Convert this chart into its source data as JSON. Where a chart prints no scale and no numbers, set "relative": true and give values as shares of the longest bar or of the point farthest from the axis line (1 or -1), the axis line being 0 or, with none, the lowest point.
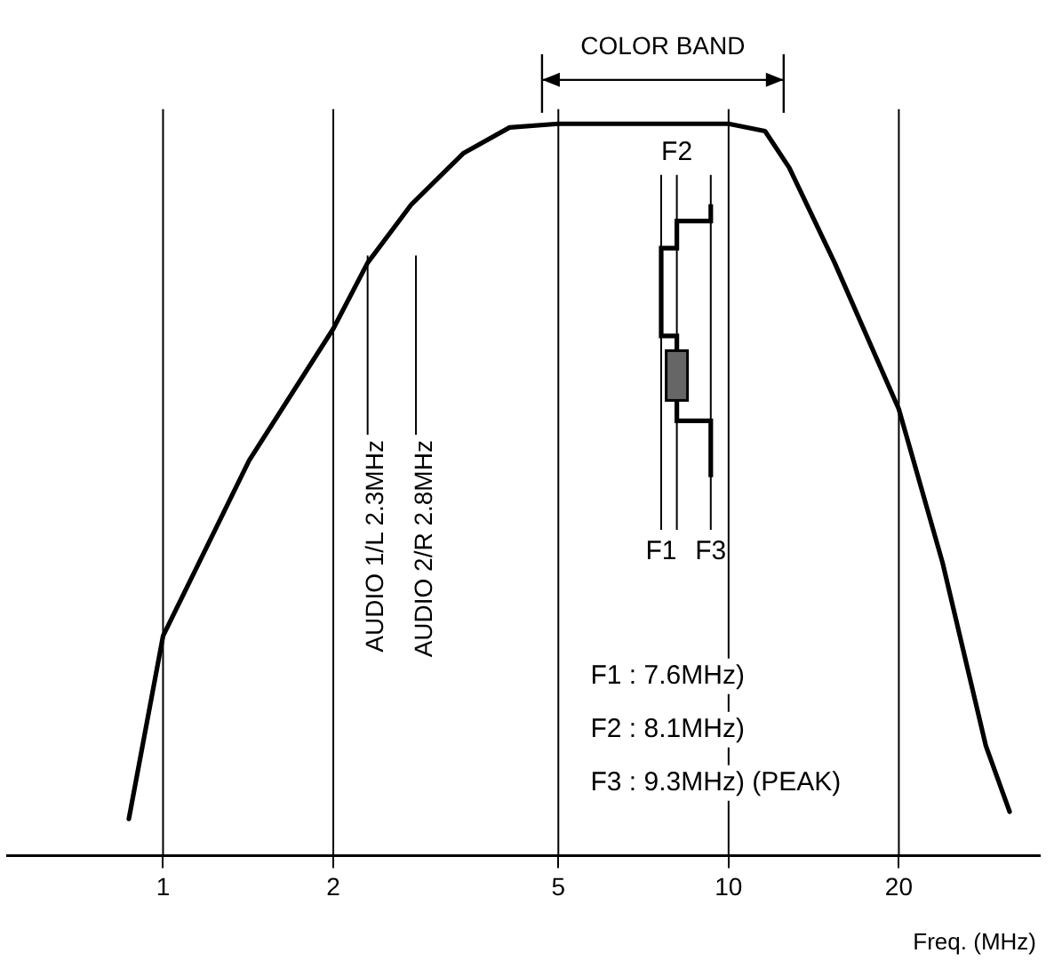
{
  "chart_data": {
    "type": "line",
    "relative": true,
    "xlabel": "Freq. (MHz)",
    "log": "x",
    "xlim": [
      0.53,
      35.5
    ],
    "xticks": [
      1,
      2,
      5,
      10,
      20
    ],
    "grid": "x",
    "tick_labels": "x",
    "legend": false,
    "marker": "none",
    "line_style": "solid",
    "x": [
      0.87,
      1,
      1.42,
      2,
      2.3,
      2.75,
      3.4,
      4.1,
      5,
      10,
      11.6,
      12.8,
      15.4,
      20,
      23.9,
      28.5,
      31.4
    ],
    "series": [
      {
        "color": "#000000",
        "values": [
          0.05,
          0.3,
          0.54,
          0.72,
          0.81,
          0.89,
          0.96,
          0.995,
          1,
          1,
          0.99,
          0.94,
          0.81,
          0.61,
          0.4,
          0.15,
          0.06
        ]
      }
    ],
    "ref_lines": [
      {
        "axis": "x",
        "value": 2.3,
        "label": "AUDIO 1/L 2.3MHz"
      },
      {
        "axis": "x",
        "value": 2.8,
        "label": "AUDIO 2/R 2.8MHz"
      },
      {
        "axis": "x",
        "value": 7.6,
        "label": "F1"
      },
      {
        "axis": "x",
        "value": 8.1,
        "label": "F2"
      },
      {
        "axis": "x",
        "value": 9.3,
        "label": "F3"
      }
    ],
    "annotations": [
      "COLOR BAND",
      "F1 : 7.6MHz)",
      "F2 : 8.1MHz)",
      "F3 : 9.3MHz) (PEAK)"
    ]
  }
}
